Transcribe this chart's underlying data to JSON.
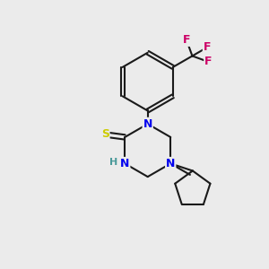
{
  "bg_color": "#ebebeb",
  "bond_color": "#1a1a1a",
  "bond_width": 1.5,
  "atom_colors": {
    "N": "#0000ee",
    "S": "#cccc00",
    "F": "#cc0066",
    "H": "#4a9a9a",
    "C": "#1a1a1a"
  },
  "xlim": [
    0,
    10
  ],
  "ylim": [
    0,
    10
  ],
  "figsize": [
    3.0,
    3.0
  ],
  "dpi": 100
}
